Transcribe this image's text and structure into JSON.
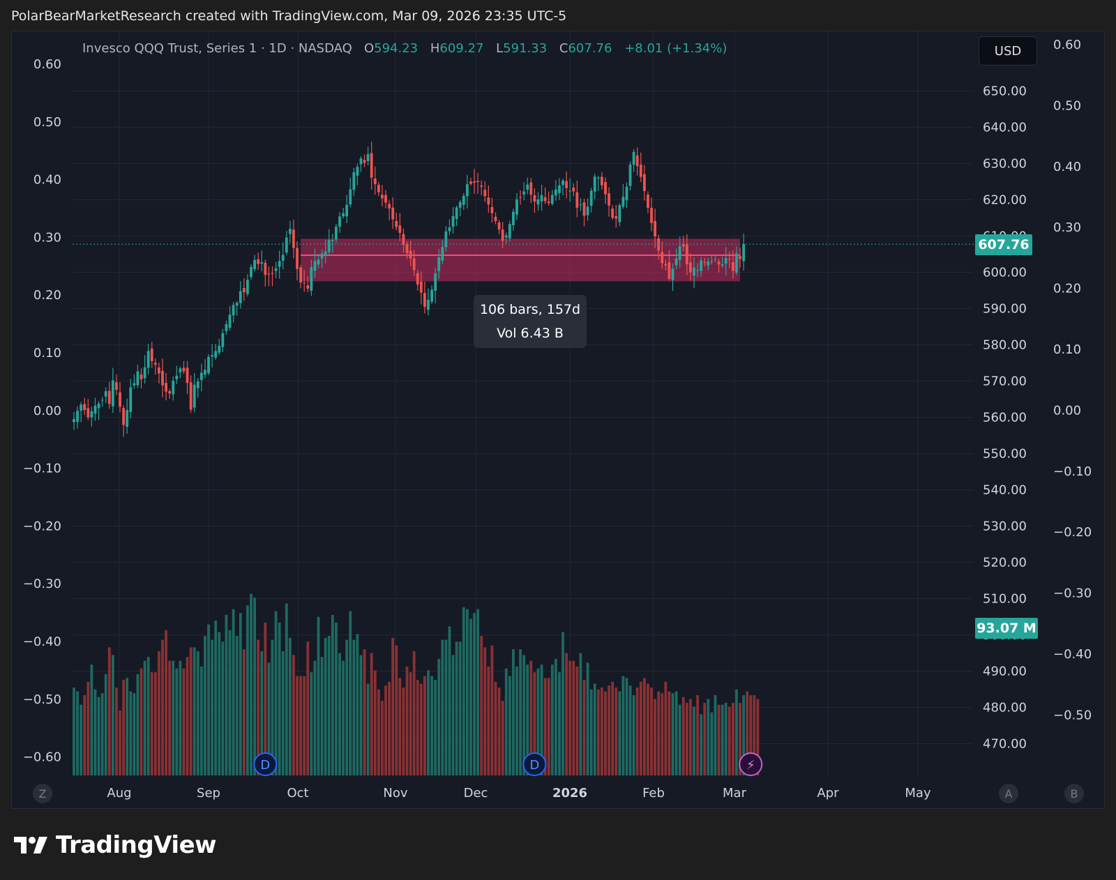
{
  "header": {
    "attribution": "PolarBearMarketResearch created with TradingView.com, Mar 09, 2026 23:35 UTC-5"
  },
  "legend": {
    "symbol": "Invesco QQQ Trust, Series 1 · 1D · NASDAQ",
    "o_label": "O",
    "o_value": "594.23",
    "h_label": "H",
    "h_value": "609.27",
    "l_label": "L",
    "l_value": "591.33",
    "c_label": "C",
    "c_value": "607.76",
    "change": "+8.01 (+1.34%)"
  },
  "currency_button": "USD",
  "range_tooltip": {
    "bars": "106 bars, 157d",
    "volume": "Vol 6.43 B"
  },
  "badges": {
    "last_price": "607.76",
    "last_volume": "93.07 M"
  },
  "brand": {
    "name": "TradingView"
  },
  "bottom_buttons": {
    "left": "Z",
    "a": "A",
    "b": "B"
  },
  "markers": {
    "dividend": "D",
    "earnings": "⚡"
  },
  "colors": {
    "up": "#26a69a",
    "down": "#ef5350",
    "zone": "#b5295a",
    "background": "#161a25"
  },
  "chart_data": {
    "type": "candlestick",
    "symbol": "QQQ",
    "interval": "1D",
    "price_axis_right": [
      "650.00",
      "640.00",
      "630.00",
      "620.00",
      "610.00",
      "600.00",
      "590.00",
      "580.00",
      "570.00",
      "560.00",
      "550.00",
      "540.00",
      "530.00",
      "520.00",
      "510.00",
      "500.00",
      "490.00",
      "480.00",
      "470.00"
    ],
    "left_axis": [
      "0.60",
      "0.50",
      "0.40",
      "0.30",
      "0.20",
      "0.10",
      "0.00",
      "−0.10",
      "−0.20",
      "−0.30",
      "−0.40",
      "−0.50",
      "−0.60"
    ],
    "far_right_axis": [
      "0.60",
      "0.50",
      "0.40",
      "0.30",
      "0.20",
      "0.10",
      "0.00",
      "−0.10",
      "−0.20",
      "−0.30",
      "−0.40",
      "−0.50"
    ],
    "x_labels": [
      "Aug",
      "Sep",
      "Oct",
      "Nov",
      "Dec",
      "2026",
      "Feb",
      "Mar",
      "Apr",
      "May"
    ],
    "ylim": [
      462,
      660
    ],
    "last_close": 607.76,
    "range_zone": {
      "top": 609.27,
      "bottom": 597.5,
      "mid": 604.7,
      "start_bar": 64,
      "end_bar": 188
    },
    "dividend_bars": [
      54,
      130
    ],
    "earnings_bars": [
      191
    ],
    "closes": [
      559.5,
      561.8,
      563.5,
      562.0,
      560.0,
      561.7,
      563.2,
      563.8,
      564.8,
      567.2,
      563.7,
      570.2,
      567.6,
      562.9,
      557.9,
      562.0,
      568.3,
      569.4,
      572.7,
      570.5,
      573.8,
      578.3,
      575.5,
      574.5,
      572.1,
      568.8,
      567.1,
      566.6,
      570.1,
      571.5,
      573.5,
      572.7,
      569.5,
      562.1,
      569.0,
      569.9,
      572.3,
      573.1,
      576.7,
      577.2,
      578.3,
      579.7,
      583.2,
      585.7,
      588.3,
      591.0,
      591.6,
      594.8,
      594.5,
      597.9,
      601.5,
      603.4,
      602.3,
      602.8,
      599.3,
      599.4,
      599.6,
      601.1,
      603.1,
      604.8,
      609.6,
      612.0,
      606.7,
      600.9,
      597.2,
      597.1,
      595.5,
      601.4,
      603.1,
      603.5,
      605.2,
      605.8,
      608.9,
      608.9,
      612.6,
      615.4,
      616.3,
      618.6,
      622.9,
      627.6,
      629.1,
      631.4,
      630.2,
      632.6,
      626.1,
      624.3,
      622.1,
      620.4,
      619.2,
      617.6,
      614.6,
      612.5,
      610.9,
      607.6,
      605.3,
      603.8,
      600.6,
      596.6,
      594.4,
      590.5,
      592.4,
      595.2,
      599.7,
      604.1,
      607.0,
      611.3,
      612.4,
      615.5,
      617.9,
      619.4,
      621.1,
      624.3,
      624.4,
      624.7,
      624.9,
      623.6,
      621.0,
      618.7,
      616.3,
      614.1,
      611.8,
      608.7,
      610.2,
      613.3,
      616.7,
      620.1,
      620.7,
      622.3,
      624.2,
      621.4,
      619.5,
      620.1,
      621.3,
      619.6,
      619.1,
      621.3,
      622.8,
      624.0,
      625.3,
      623.2,
      622.5,
      622.3,
      617.8,
      618.7,
      615.6,
      618.1,
      622.5,
      626.4,
      626.1,
      624.0,
      621.5,
      618.4,
      615.0,
      614.8,
      618.5,
      620.8,
      623.6,
      629.7,
      633.2,
      629.3,
      626.3,
      622.4,
      617.8,
      613.6,
      609.9,
      606.0,
      602.5,
      601.9,
      598.2,
      601.0,
      603.8,
      607.2,
      607.1,
      602.2,
      600.0,
      601.3,
      600.6,
      603.3,
      602.6,
      603.0,
      603.1,
      603.6,
      602.2,
      602.2,
      603.9,
      603.5,
      600.4,
      605.2,
      603.7,
      607.8
    ],
    "volume_relative": [
      0.46,
      0.44,
      0.37,
      0.42,
      0.49,
      0.58,
      0.45,
      0.41,
      0.43,
      0.53,
      0.67,
      0.63,
      0.46,
      0.34,
      0.5,
      0.51,
      0.44,
      0.43,
      0.53,
      0.56,
      0.6,
      0.62,
      0.54,
      0.54,
      0.65,
      0.71,
      0.76,
      0.6,
      0.6,
      0.56,
      0.6,
      0.56,
      0.62,
      0.67,
      0.67,
      0.65,
      0.57,
      0.73,
      0.79,
      0.71,
      0.81,
      0.75,
      0.7,
      0.84,
      0.76,
      0.87,
      0.73,
      0.85,
      0.66,
      0.89,
      0.95,
      0.93,
      0.71,
      0.65,
      0.8,
      0.59,
      0.71,
      0.86,
      0.8,
      0.65,
      0.9,
      0.72,
      0.63,
      0.52,
      0.52,
      0.52,
      0.7,
      0.54,
      0.6,
      0.83,
      0.62,
      0.72,
      0.73,
      0.84,
      0.8,
      0.64,
      0.6,
      0.71,
      0.86,
      0.71,
      0.74,
      0.63,
      0.66,
      0.48,
      0.64,
      0.55,
      0.45,
      0.39,
      0.47,
      0.49,
      0.72,
      0.68,
      0.51,
      0.46,
      0.57,
      0.54,
      0.65,
      0.5,
      0.48,
      0.52,
      0.55,
      0.52,
      0.5,
      0.61,
      0.71,
      0.71,
      0.78,
      0.63,
      0.7,
      0.7,
      0.88,
      0.87,
      0.82,
      0.85,
      0.87,
      0.73,
      0.67,
      0.57,
      0.68,
      0.49,
      0.46,
      0.39,
      0.56,
      0.52,
      0.66,
      0.57,
      0.66,
      0.63,
      0.58,
      0.6,
      0.54,
      0.56,
      0.58,
      0.51,
      0.51,
      0.58,
      0.61,
      0.54,
      0.75,
      0.64,
      0.6,
      0.6,
      0.57,
      0.64,
      0.5,
      0.59,
      0.45,
      0.48,
      0.45,
      0.46,
      0.44,
      0.47,
      0.49,
      0.46,
      0.44,
      0.52,
      0.51,
      0.47,
      0.42,
      0.46,
      0.49,
      0.51,
      0.48,
      0.46,
      0.4,
      0.44,
      0.43,
      0.49,
      0.44,
      0.43,
      0.44,
      0.37,
      0.41,
      0.38,
      0.4,
      0.36,
      0.42,
      0.32,
      0.38,
      0.4,
      0.33,
      0.42,
      0.37,
      0.37,
      0.38,
      0.36,
      0.38,
      0.45,
      0.38,
      0.42,
      0.44,
      0.42,
      0.42,
      0.4
    ]
  }
}
